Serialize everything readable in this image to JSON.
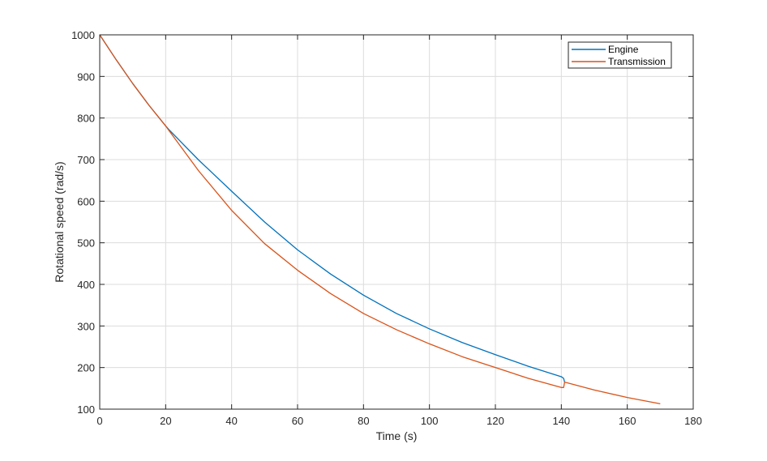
{
  "chart_data": {
    "type": "line",
    "xlabel": "Time (s)",
    "ylabel": "Rotational speed (rad/s)",
    "xlim": [
      0,
      180
    ],
    "ylim": [
      100,
      1000
    ],
    "xticks": [
      0,
      20,
      40,
      60,
      80,
      100,
      120,
      140,
      160,
      180
    ],
    "yticks": [
      100,
      200,
      300,
      400,
      500,
      600,
      700,
      800,
      900,
      1000
    ],
    "grid": true,
    "legend_position": "top-right",
    "series": [
      {
        "name": "Engine",
        "color": "#0072BD",
        "x": [
          0,
          5,
          10,
          15,
          20,
          21,
          30,
          40,
          50,
          60,
          70,
          80,
          90,
          100,
          110,
          120,
          130,
          140,
          140.7,
          141
        ],
        "y": [
          1000,
          940,
          883,
          830,
          781,
          772,
          699,
          624,
          550,
          483,
          425,
          374,
          330,
          293,
          260,
          231,
          203,
          178,
          174,
          165
        ]
      },
      {
        "name": "Transmission",
        "color": "#D95319",
        "x": [
          0,
          5,
          10,
          15,
          20,
          21,
          30,
          40,
          50,
          60,
          70,
          80,
          90,
          100,
          110,
          120,
          130,
          140,
          140.7,
          141,
          150,
          160,
          170
        ],
        "y": [
          1000,
          940,
          883,
          830,
          781,
          770,
          673,
          578,
          498,
          434,
          378,
          330,
          291,
          257,
          226,
          200,
          174,
          152,
          152,
          165,
          146,
          128,
          113
        ]
      }
    ]
  }
}
